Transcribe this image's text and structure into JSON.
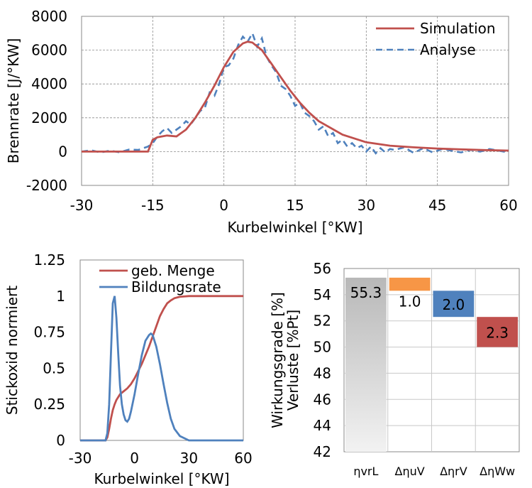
{
  "chart_data": [
    {
      "type": "line",
      "xlabel": "Kurbelwinkel [°KW]",
      "ylabel": "Brennrate [J/°KW]",
      "xlim": [
        -30,
        60
      ],
      "ylim": [
        -2000,
        8000
      ],
      "xticks": [
        -30,
        -15,
        0,
        15,
        30,
        45,
        60
      ],
      "yticks": [
        -2000,
        0,
        2000,
        4000,
        6000,
        8000
      ],
      "grid": true,
      "legend_position": "top-right",
      "series": [
        {
          "name": "Simulation",
          "color": "#c0504d",
          "style": "solid",
          "x": [
            -30,
            -20,
            -16,
            -15,
            -14,
            -12,
            -10,
            -8,
            -6,
            -4,
            -2,
            0,
            2,
            4,
            5,
            6,
            8,
            10,
            12,
            14,
            16,
            18,
            20,
            25,
            30,
            35,
            40,
            45,
            50,
            55,
            60
          ],
          "y": [
            0,
            0,
            0,
            700,
            850,
            950,
            900,
            1300,
            2000,
            2900,
            3900,
            5000,
            5900,
            6400,
            6500,
            6450,
            6000,
            5200,
            4400,
            3600,
            2900,
            2300,
            1800,
            1000,
            550,
            350,
            250,
            180,
            130,
            90,
            60
          ]
        },
        {
          "name": "Analyse",
          "color": "#4f81bd",
          "style": "dashed",
          "x": [
            -30,
            -28,
            -26,
            -24,
            -22,
            -20,
            -18,
            -16,
            -15,
            -14,
            -13,
            -12,
            -11,
            -10,
            -9,
            -8,
            -7,
            -6,
            -5,
            -4,
            -3,
            -2,
            -1,
            0,
            1,
            2,
            3,
            4,
            5,
            6,
            7,
            8,
            9,
            10,
            11,
            12,
            13,
            14,
            15,
            16,
            17,
            18,
            19,
            20,
            21,
            22,
            23,
            24,
            25,
            26,
            27,
            28,
            29,
            30,
            31,
            32,
            33,
            34,
            35,
            36,
            38,
            40,
            42,
            44,
            46,
            48,
            50,
            52,
            54,
            56,
            58,
            60
          ],
          "y": [
            0,
            80,
            -50,
            60,
            -40,
            120,
            100,
            300,
            500,
            900,
            1200,
            1400,
            1100,
            1300,
            1500,
            1800,
            1600,
            2000,
            2400,
            2600,
            3500,
            3300,
            4000,
            5000,
            5100,
            5500,
            6300,
            6800,
            6500,
            7000,
            6200,
            6700,
            5600,
            5100,
            4700,
            3900,
            3700,
            3300,
            2700,
            2900,
            2300,
            2100,
            1800,
            1300,
            1500,
            900,
            1100,
            500,
            700,
            300,
            500,
            200,
            350,
            0,
            300,
            -100,
            200,
            -50,
            150,
            100,
            250,
            -80,
            200,
            -50,
            150,
            50,
            -50,
            100,
            0,
            150,
            50,
            -60
          ]
        }
      ]
    },
    {
      "type": "line",
      "xlabel": "Kurbelwinkel [°KW]",
      "ylabel": "Stickoxid normiert",
      "xlim": [
        -30,
        60
      ],
      "ylim": [
        0,
        1.25
      ],
      "xticks": [
        -30,
        0,
        30,
        60
      ],
      "yticks": [
        0,
        0.25,
        0.5,
        0.75,
        1,
        1.25
      ],
      "ytick_labels": [
        "0",
        "0.25",
        "0.5",
        "0.75",
        "1",
        "1.25"
      ],
      "grid": false,
      "legend_position": "top",
      "series": [
        {
          "name": "geb. Menge",
          "color": "#c0504d",
          "x": [
            -30,
            -20,
            -16,
            -15,
            -14,
            -13,
            -12,
            -11,
            -10,
            -9,
            -8,
            -6,
            -4,
            -2,
            0,
            2,
            4,
            6,
            8,
            10,
            12,
            14,
            16,
            18,
            20,
            22,
            25,
            30,
            40,
            50,
            60
          ],
          "y": [
            0,
            0,
            0,
            0.02,
            0.08,
            0.15,
            0.21,
            0.25,
            0.28,
            0.3,
            0.32,
            0.34,
            0.36,
            0.39,
            0.43,
            0.48,
            0.53,
            0.59,
            0.65,
            0.72,
            0.79,
            0.86,
            0.91,
            0.95,
            0.97,
            0.985,
            0.995,
            1,
            1,
            1,
            1
          ]
        },
        {
          "name": "Bildungsrate",
          "color": "#4f81bd",
          "x": [
            -30,
            -20,
            -16,
            -15,
            -14,
            -13,
            -12,
            -11,
            -10,
            -9,
            -8,
            -7,
            -6,
            -5,
            -4,
            -3,
            -2,
            0,
            2,
            4,
            6,
            8,
            9,
            10,
            12,
            14,
            16,
            18,
            20,
            22,
            25,
            30,
            40,
            50,
            60
          ],
          "y": [
            0,
            0,
            0,
            0.05,
            0.25,
            0.6,
            0.95,
            1.0,
            0.85,
            0.6,
            0.38,
            0.25,
            0.18,
            0.14,
            0.13,
            0.15,
            0.2,
            0.32,
            0.46,
            0.59,
            0.69,
            0.73,
            0.74,
            0.73,
            0.65,
            0.53,
            0.39,
            0.26,
            0.15,
            0.08,
            0.03,
            0.0,
            0,
            0,
            0
          ]
        }
      ]
    },
    {
      "type": "bar",
      "subtype": "waterfall",
      "ylabel_lines": [
        "Wirkungsgrade [%]",
        "Verluste [%Pt]"
      ],
      "ylim": [
        42,
        56
      ],
      "yticks": [
        42,
        44,
        46,
        48,
        50,
        52,
        54,
        56
      ],
      "grid": true,
      "categories": [
        "ηvrL",
        "ΔηuV",
        "ΔηrV",
        "ΔηWw"
      ],
      "bars": [
        {
          "category": "ηvrL",
          "bottom": 42,
          "top": 55.3,
          "label": "55.3",
          "color": "#b8b8b8",
          "gradient_to": "#f2f2f2"
        },
        {
          "category": "ΔηuV",
          "bottom": 54.3,
          "top": 55.3,
          "label": "1.0",
          "color": "#f79646"
        },
        {
          "category": "ΔηrV",
          "bottom": 52.3,
          "top": 54.3,
          "label": "2.0",
          "color": "#4f81bd"
        },
        {
          "category": "ΔηWw",
          "bottom": 50.0,
          "top": 52.3,
          "label": "2.3",
          "color": "#c0504d"
        }
      ]
    }
  ]
}
